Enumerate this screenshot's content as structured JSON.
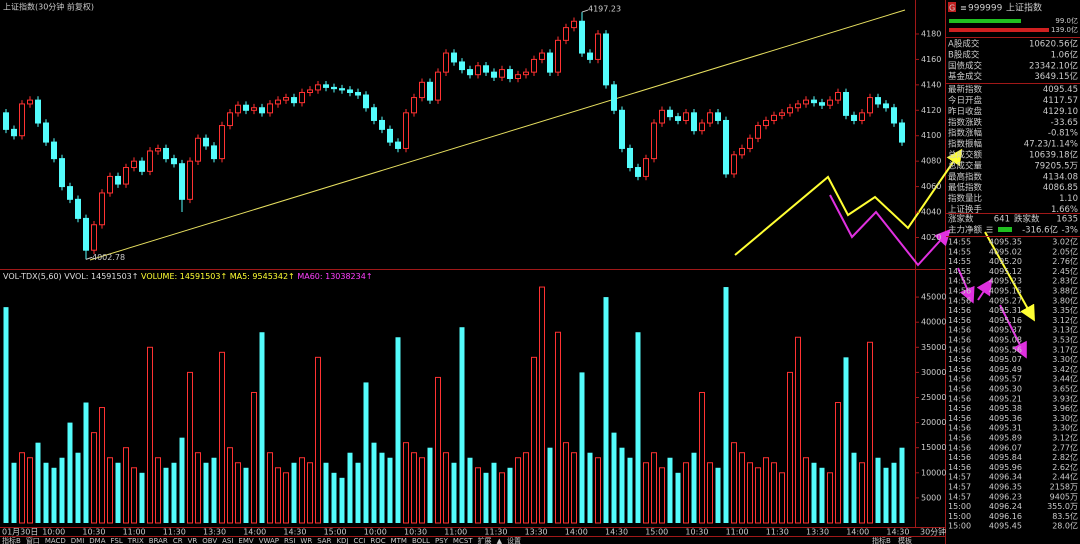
{
  "title": "上证指数(30分钟 前复权)",
  "chart_data": [
    {
      "type": "candlestick",
      "up_color": "#ff3232",
      "down_color": "#54fcfc",
      "ylim": [
        3996,
        4202
      ],
      "yticks": [
        4020,
        4040,
        4060,
        4080,
        4100,
        4120,
        4140,
        4160,
        4180
      ],
      "open": [
        4118,
        4105,
        4100,
        4125,
        4128,
        4110,
        4095,
        4082,
        4060,
        4050,
        4035,
        4010,
        4030,
        4055,
        4068,
        4062,
        4075,
        4080,
        4072,
        4088,
        4090,
        4082,
        4078,
        4050,
        4080,
        4098,
        4092,
        4082,
        4108,
        4118,
        4124,
        4120,
        4122,
        4118,
        4125,
        4128,
        4130,
        4126,
        4134,
        4136,
        4140,
        4138,
        4137,
        4136,
        4134,
        4132,
        4122,
        4112,
        4105,
        4095,
        4090,
        4118,
        4130,
        4142,
        4128,
        4150,
        4165,
        4158,
        4152,
        4148,
        4155,
        4150,
        4146,
        4152,
        4145,
        4148,
        4150,
        4160,
        4165,
        4150,
        4175,
        4185,
        4190,
        4165,
        4160,
        4180,
        4140,
        4120,
        4090,
        4075,
        4068,
        4082,
        4110,
        4120,
        4115,
        4112,
        4118,
        4104,
        4110,
        4118,
        4112,
        4070,
        4085,
        4090,
        4098,
        4108,
        4112,
        4116,
        4118,
        4122,
        4125,
        4128,
        4126,
        4124,
        4128,
        4134,
        4116,
        4112,
        4118,
        4130,
        4125,
        4122,
        4110
      ],
      "high": [
        4121,
        4108,
        4128,
        4131,
        4131,
        4113,
        4098,
        4085,
        4063,
        4053,
        4038,
        4033,
        4058,
        4071,
        4071,
        4078,
        4083,
        4083,
        4091,
        4093,
        4093,
        4085,
        4081,
        4083,
        4101,
        4101,
        4095,
        4111,
        4121,
        4127,
        4127,
        4125,
        4125,
        4128,
        4131,
        4133,
        4133,
        4137,
        4139,
        4143,
        4143,
        4141,
        4140,
        4139,
        4137,
        4135,
        4125,
        4115,
        4108,
        4098,
        4121,
        4133,
        4145,
        4145,
        4153,
        4168,
        4168,
        4161,
        4155,
        4158,
        4158,
        4153,
        4155,
        4155,
        4151,
        4153,
        4163,
        4168,
        4168,
        4178,
        4188,
        4193,
        4197.23,
        4168,
        4183,
        4183,
        4143,
        4123,
        4093,
        4078,
        4085,
        4113,
        4123,
        4123,
        4118,
        4121,
        4121,
        4113,
        4121,
        4121,
        4115,
        4088,
        4093,
        4101,
        4111,
        4115,
        4119,
        4121,
        4125,
        4128,
        4131,
        4131,
        4129,
        4131,
        4137,
        4137,
        4119,
        4121,
        4133,
        4133,
        4128,
        4125,
        4113
      ],
      "low": [
        4102,
        4097,
        4097,
        4122,
        4107,
        4092,
        4079,
        4057,
        4047,
        4032,
        4002.78,
        4007,
        4027,
        4052,
        4059,
        4059,
        4072,
        4069,
        4069,
        4085,
        4079,
        4075,
        4040,
        4047,
        4077,
        4089,
        4079,
        4079,
        4105,
        4115,
        4117,
        4117,
        4115,
        4115,
        4122,
        4125,
        4123,
        4123,
        4131,
        4133,
        4135,
        4134,
        4133,
        4131,
        4129,
        4119,
        4109,
        4102,
        4092,
        4087,
        4087,
        4115,
        4127,
        4125,
        4125,
        4147,
        4155,
        4149,
        4145,
        4145,
        4147,
        4143,
        4143,
        4142,
        4142,
        4145,
        4147,
        4157,
        4147,
        4147,
        4172,
        4182,
        4162,
        4157,
        4157,
        4137,
        4117,
        4087,
        4072,
        4065,
        4065,
        4079,
        4107,
        4112,
        4109,
        4109,
        4101,
        4101,
        4107,
        4109,
        4067,
        4067,
        4082,
        4087,
        4095,
        4105,
        4109,
        4113,
        4115,
        4119,
        4122,
        4123,
        4121,
        4121,
        4125,
        4113,
        4109,
        4109,
        4115,
        4122,
        4119,
        4107,
        4092
      ],
      "close": [
        4105,
        4100,
        4125,
        4128,
        4110,
        4095,
        4082,
        4060,
        4050,
        4035,
        4010,
        4030,
        4055,
        4068,
        4062,
        4075,
        4080,
        4072,
        4088,
        4090,
        4082,
        4078,
        4050,
        4080,
        4098,
        4092,
        4082,
        4108,
        4118,
        4124,
        4120,
        4122,
        4118,
        4125,
        4128,
        4130,
        4126,
        4134,
        4136,
        4140,
        4138,
        4137,
        4136,
        4134,
        4132,
        4122,
        4112,
        4105,
        4095,
        4090,
        4118,
        4130,
        4142,
        4128,
        4150,
        4165,
        4158,
        4152,
        4148,
        4155,
        4150,
        4146,
        4152,
        4145,
        4148,
        4150,
        4160,
        4165,
        4150,
        4175,
        4185,
        4190,
        4165,
        4160,
        4180,
        4140,
        4120,
        4090,
        4075,
        4068,
        4082,
        4110,
        4120,
        4115,
        4112,
        4118,
        4104,
        4110,
        4118,
        4112,
        4070,
        4085,
        4090,
        4098,
        4108,
        4112,
        4116,
        4118,
        4122,
        4125,
        4128,
        4126,
        4124,
        4128,
        4134,
        4116,
        4112,
        4118,
        4130,
        4125,
        4122,
        4110,
        4095
      ]
    },
    {
      "type": "bar",
      "legend": [
        "VOL-TDX(5,60)",
        "VVOL: 14591503↑",
        "VOLUME: 14591503↑",
        "MA5: 9545342↑",
        "MA60: 13038234↑"
      ],
      "ylim": [
        0,
        50000
      ],
      "yticks": [
        5000,
        10000,
        15000,
        20000,
        25000,
        30000,
        35000,
        40000,
        45000
      ],
      "values": [
        43000,
        12000,
        14000,
        13000,
        16000,
        12000,
        11000,
        13000,
        20000,
        14000,
        24000,
        18000,
        23000,
        13000,
        12000,
        15000,
        11000,
        10000,
        35000,
        13000,
        11000,
        12000,
        17000,
        30000,
        14000,
        12000,
        13000,
        34000,
        15000,
        12000,
        11000,
        26000,
        38000,
        14000,
        11000,
        10000,
        12000,
        13000,
        12000,
        33000,
        12000,
        10000,
        9000,
        14000,
        12000,
        28000,
        16000,
        14000,
        13000,
        37000,
        16000,
        14000,
        13000,
        15000,
        29000,
        14000,
        12000,
        39000,
        13000,
        11000,
        10000,
        12000,
        10000,
        11000,
        13000,
        14000,
        33000,
        47000,
        15000,
        38000,
        16000,
        14000,
        30000,
        14000,
        13000,
        45000,
        18000,
        15000,
        13000,
        38000,
        12000,
        14000,
        11000,
        13000,
        10000,
        12000,
        14000,
        26000,
        12000,
        11000,
        47000,
        16000,
        14000,
        12000,
        11000,
        13000,
        12000,
        10000,
        30000,
        37000,
        13000,
        12000,
        11000,
        10000,
        24000,
        33000,
        14000,
        12000,
        36000,
        13000,
        11000,
        12000,
        15000
      ],
      "xtick_labels": [
        "01月30日",
        "10:00",
        "10:30",
        "11:00",
        "11:30",
        "13:30",
        "14:00",
        "14:30",
        "15:00",
        "10:00",
        "10:30",
        "11:00",
        "11:30",
        "13:30",
        "14:00",
        "14:30",
        "15:00",
        "10:30",
        "11:00",
        "11:30",
        "13:30",
        "14:00",
        "14:30"
      ],
      "period_label": "30分钟"
    }
  ],
  "indicator_tabs": [
    "指标B",
    "窗口",
    "MACD",
    "DMI",
    "DMA",
    "FSL",
    "TRIX",
    "BRAR",
    "CR",
    "VR",
    "OBV",
    "ASI",
    "EMV",
    "VWAP",
    "RSI",
    "WR",
    "SAR",
    "KDJ",
    "CCI",
    "ROC",
    "MTM",
    "BOLL",
    "PSY",
    "MCST",
    "扩展",
    "▲",
    "设置"
  ],
  "right_tabs": [
    "指标B",
    "模板"
  ],
  "panel": {
    "prefix": "G",
    "code": "999999",
    "name": "上证指数",
    "bar_labels": [
      "99.0亿",
      "139.0亿"
    ],
    "rows": [
      {
        "label": "A股成交",
        "value": "10620.56亿",
        "color": "#ffff66"
      },
      {
        "label": "B股成交",
        "value": "1.06亿",
        "color": "#ffff66"
      },
      {
        "label": "国债成交",
        "value": "23342.10亿",
        "color": "#ffff66"
      },
      {
        "label": "基金成交",
        "value": "3649.15亿",
        "color": "#ffff66"
      },
      {
        "label": "最新指数",
        "value": "4095.45",
        "color": "#3cf03c"
      },
      {
        "label": "今日开盘",
        "value": "4117.57",
        "color": "#3cf03c"
      },
      {
        "label": "昨日收盘",
        "value": "4129.10",
        "color": "#e0e0e0"
      },
      {
        "label": "指数涨跌",
        "value": "-33.65",
        "color": "#3cf03c"
      },
      {
        "label": "指数涨幅",
        "value": "-0.81%",
        "color": "#3cf03c"
      },
      {
        "label": "指数振幅",
        "value": "47.23/1.14%",
        "color": "#e0e0e0"
      },
      {
        "label": "总成交额",
        "value": "10639.18亿",
        "color": "#ffff66"
      },
      {
        "label": "总成交量",
        "value": "79205.5万",
        "color": "#ffff66"
      },
      {
        "label": "最高指数",
        "value": "4134.08",
        "color": "#ff3232"
      },
      {
        "label": "最低指数",
        "value": "4086.85",
        "color": "#3cf03c"
      },
      {
        "label": "指数量比",
        "value": "1.10",
        "color": "#ff3232"
      },
      {
        "label": "上证换手",
        "value": "1.66%",
        "color": "#e0e0e0"
      }
    ],
    "breadth": {
      "up_label": "涨家数",
      "up": "641",
      "down_label": "跌家数",
      "down": "1635"
    },
    "flow": {
      "label": "主力净额",
      "value": "-316.6亿",
      "pct": "-3%"
    },
    "ticks": [
      [
        "14:55",
        "4095.35",
        "3.02亿"
      ],
      [
        "14:55",
        "4095.02",
        "2.05亿"
      ],
      [
        "14:55",
        "4095.20",
        "2.76亿"
      ],
      [
        "14:55",
        "4095.12",
        "2.45亿"
      ],
      [
        "14:55",
        "4095.23",
        "2.83亿"
      ],
      [
        "14:56",
        "4095.15",
        "3.88亿"
      ],
      [
        "14:56",
        "4095.27",
        "3.80亿"
      ],
      [
        "14:56",
        "4095.31",
        "3.35亿"
      ],
      [
        "14:56",
        "4095.16",
        "3.12亿"
      ],
      [
        "14:56",
        "4095.37",
        "3.13亿"
      ],
      [
        "14:56",
        "4095.08",
        "3.53亿"
      ],
      [
        "14:56",
        "4095.56",
        "3.17亿"
      ],
      [
        "14:56",
        "4095.07",
        "3.30亿"
      ],
      [
        "14:56",
        "4095.49",
        "3.42亿"
      ],
      [
        "14:56",
        "4095.57",
        "3.44亿"
      ],
      [
        "14:56",
        "4095.30",
        "3.65亿"
      ],
      [
        "14:56",
        "4095.21",
        "3.93亿"
      ],
      [
        "14:56",
        "4095.38",
        "3.96亿"
      ],
      [
        "14:56",
        "4095.36",
        "3.30亿"
      ],
      [
        "14:56",
        "4095.31",
        "3.30亿"
      ],
      [
        "14:56",
        "4095.89",
        "3.12亿"
      ],
      [
        "14:56",
        "4096.07",
        "2.77亿"
      ],
      [
        "14:56",
        "4095.84",
        "2.82亿"
      ],
      [
        "14:56",
        "4095.96",
        "2.62亿"
      ],
      [
        "14:57",
        "4096.34",
        "2.44亿"
      ],
      [
        "14:57",
        "4096.35",
        "2158万"
      ],
      [
        "14:57",
        "4096.23",
        "9405万"
      ],
      [
        "15:00",
        "4096.24",
        "355.0万"
      ],
      [
        "15:00",
        "4096.16",
        "83.5亿"
      ],
      [
        "15:00",
        "4095.45",
        "28.0亿"
      ]
    ]
  }
}
